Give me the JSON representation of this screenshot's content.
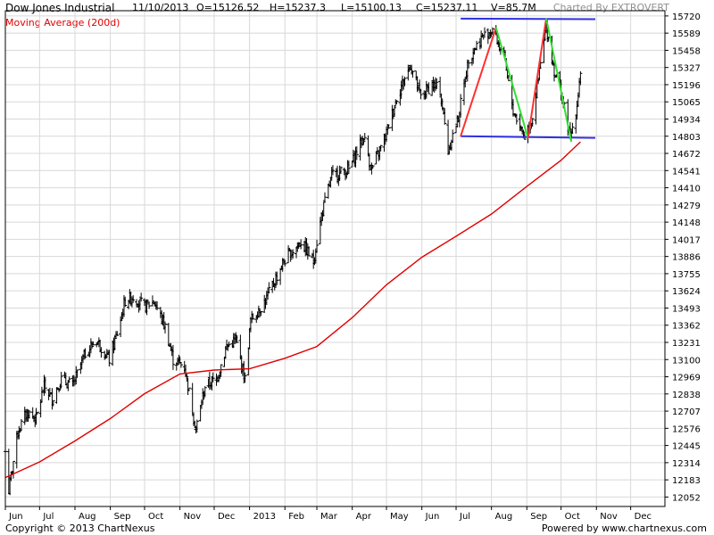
{
  "header": {
    "title": "Dow Jones Industrial",
    "date": "11/10/2013",
    "open": "O=15126.52",
    "high": "H=15237.3",
    "low": "L=15100.13",
    "close": "C=15237.11",
    "volume": "V=85.7M",
    "credit": "Charted By EXTROVERT"
  },
  "indicator": {
    "label": "Moving Average (200d)",
    "color": "#e00000"
  },
  "footer": {
    "copyright": "Copyright © 2013 ChartNexus",
    "powered": "Powered by www.chartnexus.com"
  },
  "colors": {
    "price": "#000000",
    "ma": "#e00000",
    "channel": "#3030e0",
    "up_leg": "#ff3030",
    "down_leg": "#30e030",
    "grid": "#d8d8d8"
  },
  "chart_data": {
    "type": "ohlc",
    "y_ticks": [
      12052,
      12183,
      12314,
      12445,
      12576,
      12707,
      12838,
      12969,
      13100,
      13231,
      13362,
      13493,
      13624,
      13755,
      13886,
      14017,
      14148,
      14279,
      14410,
      14541,
      14672,
      14803,
      14934,
      15065,
      15196,
      15327,
      15458,
      15589,
      15720
    ],
    "ylim": [
      11980,
      15760
    ],
    "x_labels": [
      "Jun",
      "Jul",
      "Aug",
      "Sep",
      "Oct",
      "Nov",
      "Dec",
      "2013",
      "Feb",
      "Mar",
      "Apr",
      "May",
      "Jun",
      "Jul",
      "Aug",
      "Sep",
      "Oct",
      "Nov",
      "Dec"
    ],
    "x_range": [
      "2012-06-01",
      "2013-12-31"
    ],
    "grid": true,
    "price_anchors": [
      [
        "2012-06-01",
        12400
      ],
      [
        "2012-06-04",
        12100
      ],
      [
        "2012-06-12",
        12550
      ],
      [
        "2012-06-20",
        12700
      ],
      [
        "2012-06-28",
        12650
      ],
      [
        "2012-07-05",
        12900
      ],
      [
        "2012-07-12",
        12800
      ],
      [
        "2012-07-20",
        12950
      ],
      [
        "2012-07-30",
        12900
      ],
      [
        "2012-08-10",
        13150
      ],
      [
        "2012-08-20",
        13250
      ],
      [
        "2012-08-31",
        13100
      ],
      [
        "2012-09-07",
        13300
      ],
      [
        "2012-09-14",
        13550
      ],
      [
        "2012-09-21",
        13580
      ],
      [
        "2012-10-01",
        13500
      ],
      [
        "2012-10-09",
        13550
      ],
      [
        "2012-10-19",
        13350
      ],
      [
        "2012-10-26",
        13100
      ],
      [
        "2012-11-05",
        13050
      ],
      [
        "2012-11-09",
        12850
      ],
      [
        "2012-11-15",
        12570
      ],
      [
        "2012-11-23",
        12900
      ],
      [
        "2012-12-03",
        12950
      ],
      [
        "2012-12-12",
        13200
      ],
      [
        "2012-12-20",
        13250
      ],
      [
        "2012-12-28",
        12950
      ],
      [
        "2013-01-02",
        13400
      ],
      [
        "2013-01-15",
        13550
      ],
      [
        "2013-01-31",
        13850
      ],
      [
        "2013-02-15",
        14000
      ],
      [
        "2013-02-26",
        13850
      ],
      [
        "2013-03-05",
        14200
      ],
      [
        "2013-03-14",
        14500
      ],
      [
        "2013-03-29",
        14550
      ],
      [
        "2013-04-11",
        14800
      ],
      [
        "2013-04-18",
        14550
      ],
      [
        "2013-04-30",
        14800
      ],
      [
        "2013-05-10",
        15100
      ],
      [
        "2013-05-22",
        15350
      ],
      [
        "2013-05-31",
        15100
      ],
      [
        "2013-06-10",
        15200
      ],
      [
        "2013-06-17",
        15150
      ],
      [
        "2013-06-24",
        14700
      ],
      [
        "2013-07-03",
        14950
      ],
      [
        "2013-07-12",
        15400
      ],
      [
        "2013-07-23",
        15550
      ],
      [
        "2013-08-02",
        15620
      ],
      [
        "2013-08-12",
        15400
      ],
      [
        "2013-08-20",
        15000
      ],
      [
        "2013-08-30",
        14800
      ],
      [
        "2013-09-06",
        14950
      ],
      [
        "2013-09-13",
        15350
      ],
      [
        "2013-09-18",
        15650
      ],
      [
        "2013-09-25",
        15300
      ],
      [
        "2013-10-01",
        15150
      ],
      [
        "2013-10-09",
        14780
      ],
      [
        "2013-10-15",
        15050
      ],
      [
        "2013-10-18",
        15300
      ]
    ],
    "ma_anchors": [
      [
        "2012-06-01",
        12200
      ],
      [
        "2012-07-01",
        12320
      ],
      [
        "2012-08-01",
        12480
      ],
      [
        "2012-09-01",
        12650
      ],
      [
        "2012-10-01",
        12840
      ],
      [
        "2012-11-01",
        12990
      ],
      [
        "2012-12-01",
        13020
      ],
      [
        "2013-01-01",
        13030
      ],
      [
        "2013-02-01",
        13110
      ],
      [
        "2013-03-01",
        13200
      ],
      [
        "2013-04-01",
        13420
      ],
      [
        "2013-05-01",
        13670
      ],
      [
        "2013-06-01",
        13880
      ],
      [
        "2013-07-01",
        14040
      ],
      [
        "2013-08-01",
        14210
      ],
      [
        "2013-09-01",
        14420
      ],
      [
        "2013-10-01",
        14620
      ],
      [
        "2013-10-18",
        14760
      ]
    ],
    "channel": [
      {
        "points": [
          [
            "2013-07-05",
            15700
          ],
          [
            "2013-10-31",
            15695
          ]
        ],
        "color": "#3030e0"
      },
      {
        "points": [
          [
            "2013-07-05",
            14803
          ],
          [
            "2013-10-31",
            14790
          ]
        ],
        "color": "#3030e0"
      }
    ],
    "legs": [
      {
        "points": [
          [
            "2013-07-05",
            14803
          ],
          [
            "2013-08-05",
            15630
          ]
        ],
        "color": "#ff3030"
      },
      {
        "points": [
          [
            "2013-08-05",
            15630
          ],
          [
            "2013-09-02",
            14790
          ]
        ],
        "color": "#30e030"
      },
      {
        "points": [
          [
            "2013-09-02",
            14790
          ],
          [
            "2013-09-18",
            15700
          ]
        ],
        "color": "#ff3030"
      },
      {
        "points": [
          [
            "2013-09-18",
            15700
          ],
          [
            "2013-10-10",
            14760
          ]
        ],
        "color": "#30e030"
      }
    ]
  }
}
